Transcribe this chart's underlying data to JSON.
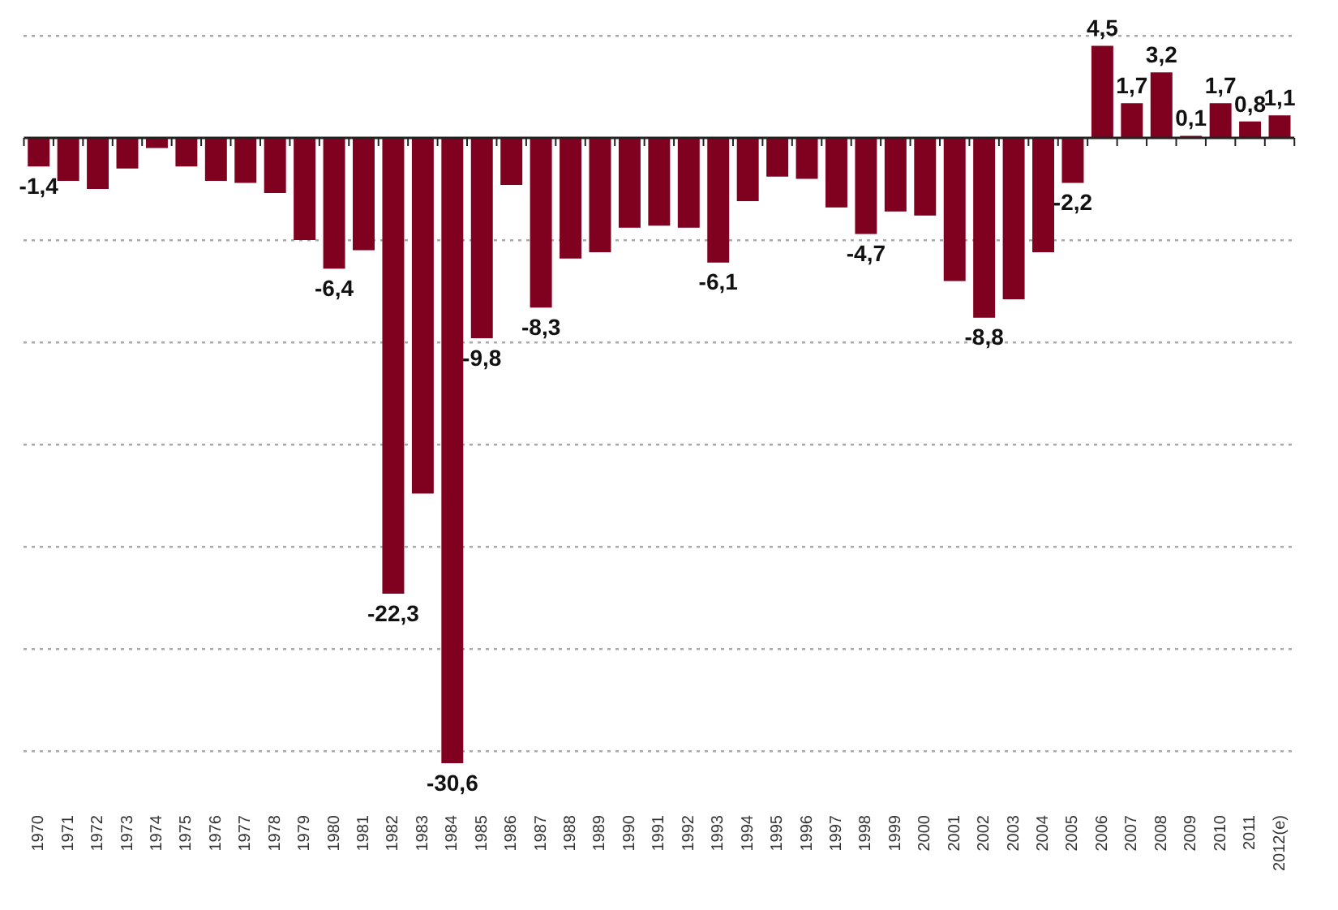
{
  "chart_data": {
    "type": "bar",
    "categories": [
      "1970",
      "1971",
      "1972",
      "1973",
      "1974",
      "1975",
      "1976",
      "1977",
      "1978",
      "1979",
      "1980",
      "1981",
      "1982",
      "1983",
      "1984",
      "1985",
      "1986",
      "1987",
      "1988",
      "1989",
      "1990",
      "1991",
      "1992",
      "1993",
      "1994",
      "1995",
      "1996",
      "1997",
      "1998",
      "1999",
      "2000",
      "2001",
      "2002",
      "2003",
      "2004",
      "2005",
      "2006",
      "2007",
      "2008",
      "2009",
      "2010",
      "2011",
      "2012(e)"
    ],
    "values": [
      -1.4,
      -2.1,
      -2.5,
      -1.5,
      -0.5,
      -1.4,
      -2.1,
      -2.2,
      -2.7,
      -5.0,
      -6.4,
      -5.5,
      -22.3,
      -17.4,
      -30.6,
      -9.8,
      -2.3,
      -8.3,
      -5.9,
      -5.6,
      -4.4,
      -4.3,
      -4.4,
      -6.1,
      -3.1,
      -1.9,
      -2.0,
      -3.4,
      -4.7,
      -3.6,
      -3.8,
      -7.0,
      -8.8,
      -7.9,
      -5.6,
      -2.2,
      4.5,
      1.7,
      3.2,
      0.1,
      1.7,
      0.8,
      1.1
    ],
    "value_labels": [
      "-1,4",
      null,
      null,
      null,
      null,
      null,
      null,
      null,
      null,
      null,
      "-6,4",
      null,
      "-22,3",
      null,
      "-30,6",
      "-9,8",
      null,
      "-8,3",
      null,
      null,
      null,
      null,
      null,
      "-6,1",
      null,
      null,
      null,
      null,
      "-4,7",
      null,
      null,
      null,
      "-8,8",
      null,
      null,
      "-2,2",
      "4,5",
      "1,7",
      "3,2",
      "0,1",
      "1,7",
      "0,8",
      "1,1"
    ],
    "color": "#800020",
    "yticks": [
      {
        "value": -30,
        "label": null
      },
      {
        "value": -25,
        "label": null
      },
      {
        "value": -20,
        "label": null
      },
      {
        "value": -15,
        "label": null
      },
      {
        "value": -10,
        "label": null
      },
      {
        "value": -5,
        "label": null
      },
      {
        "value": 5,
        "label": null
      }
    ],
    "grid": "y",
    "legend": false,
    "tick_labels": "x"
  }
}
